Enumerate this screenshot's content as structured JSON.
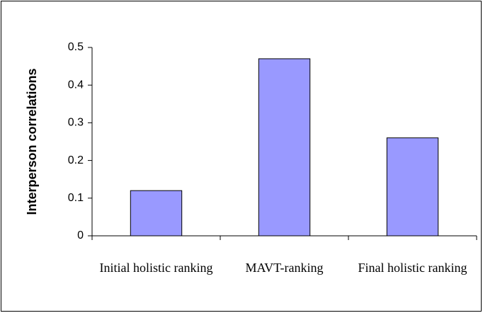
{
  "chart_data": {
    "type": "bar",
    "y_label": "Interperson correlations",
    "categories": [
      "Initial holistic ranking",
      "MAVT-ranking",
      "Final holistic ranking"
    ],
    "values": [
      0.12,
      0.47,
      0.26
    ],
    "color": "#9999ff",
    "ylim": [
      0,
      0.5
    ],
    "yticks": [
      0,
      0.1,
      0.2,
      0.3,
      0.4,
      0.5
    ],
    "grid": false
  }
}
